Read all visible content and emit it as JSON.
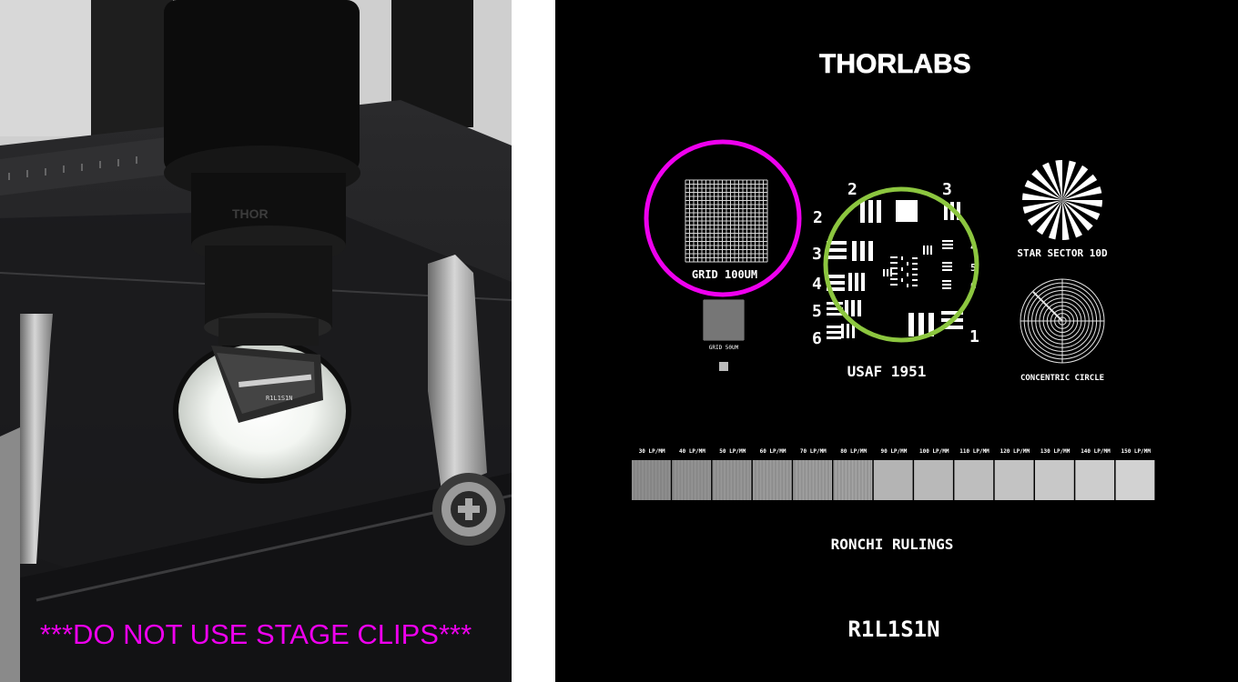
{
  "photo": {
    "warning": "***DO NOT USE STAGE CLIPS***",
    "slide_caption": "R1L1S1N",
    "colors": {
      "warning": "#ee00ee"
    }
  },
  "target": {
    "brand": "THORLABS",
    "grid_100": "GRID 100UM",
    "grid_50": "GRID 50UM",
    "usaf": "USAF 1951",
    "star": "STAR SECTOR 10D",
    "concentric": "CONCENTRIC CIRCLE",
    "groups": [
      "2",
      "3",
      "2",
      "3",
      "4",
      "5",
      "6",
      "4",
      "5",
      "6",
      "1"
    ],
    "ronchi_labels": [
      "30 LP/MM",
      "40 LP/MM",
      "50 LP/MM",
      "60 LP/MM",
      "70 LP/MM",
      "80 LP/MM",
      "90 LP/MM",
      "100 LP/MM",
      "110 LP/MM",
      "120 LP/MM",
      "130 LP/MM",
      "140 LP/MM",
      "150 LP/MM"
    ],
    "ronchi_title": "RONCHI RULINGS",
    "part_number": "R1L1S1N",
    "colors": {
      "highlight_grid": "#ee00ee",
      "highlight_usaf": "#8cc63f"
    }
  }
}
